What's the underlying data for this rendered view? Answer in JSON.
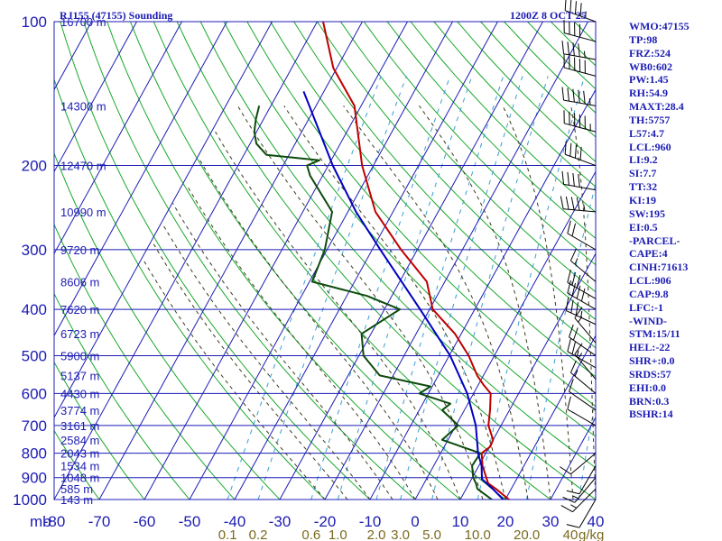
{
  "title": "RJ155 (47155) Sounding",
  "valid": "1200Z  8 OCT 25",
  "indices": [
    "WMO:47155",
    "TP:98",
    "FRZ:524",
    "WB0:602",
    "PW:1.45",
    "RH:54.9",
    "MAXT:28.4",
    "TH:5757",
    "L57:4.7",
    "LCL:960",
    "LI:9.2",
    "SI:7.7",
    "TT:32",
    "KI:19",
    "SW:195",
    "EI:0.5",
    "-PARCEL-",
    "CAPE:4",
    "CINH:71613",
    "LCL:906",
    "CAP:9.8",
    "LFC:-1",
    "-WIND-",
    "STM:15/11",
    "HEL:-22",
    "SHR+:0.0",
    "SRDS:57",
    "EHI:0.0",
    "BRN:0.3",
    "BSHR:14"
  ],
  "colors": {
    "isobar": "#1c1cb4",
    "isotherm": "#1c1cb4",
    "dry_adiabat": "#19a82b",
    "moist_adiabat": "#3c3c1e",
    "mixing_ratio": "#3a9fd0",
    "temperature": "#c00000",
    "dewpoint": "#0e4b0e",
    "parcel": "#0000c0",
    "label": "#1c1cb4",
    "mixing_label": "#7a6a1e"
  },
  "chart_data": {
    "type": "line",
    "diagram": "skew-T log-p",
    "y_axis": {
      "unit_label": "mb",
      "scale": "log",
      "range": [
        1000,
        100
      ],
      "ticks": [
        100,
        200,
        300,
        400,
        500,
        600,
        700,
        800,
        900,
        1000
      ]
    },
    "x_axis": {
      "unit": "C",
      "range": [
        -80,
        40
      ],
      "ticks": [
        "-80",
        "-70",
        "-60",
        "-50",
        "-40",
        "-30",
        "-20",
        "-10",
        "0",
        "10",
        "20",
        "30",
        "40"
      ],
      "mixing_ratio_unit": "g/kg",
      "mixing_ratio_ticks": [
        "0.1",
        "0.2",
        "0.6",
        "1.0",
        "2.0",
        "3.0",
        "5.0",
        "10.0",
        "20.0",
        "40"
      ]
    },
    "height_labels": [
      {
        "p": 100,
        "label": "16700 m"
      },
      {
        "p": 150,
        "label": "14300 m"
      },
      {
        "p": 200,
        "label": "12470 m"
      },
      {
        "p": 250,
        "label": "10990 m"
      },
      {
        "p": 300,
        "label": "9720 m"
      },
      {
        "p": 350,
        "label": "8606 m"
      },
      {
        "p": 400,
        "label": "7620 m"
      },
      {
        "p": 450,
        "label": "6723 m"
      },
      {
        "p": 500,
        "label": "5900 m"
      },
      {
        "p": 550,
        "label": "5137 m"
      },
      {
        "p": 600,
        "label": "4430 m"
      },
      {
        "p": 650,
        "label": "3774 m"
      },
      {
        "p": 700,
        "label": "3161 m"
      },
      {
        "p": 750,
        "label": "2584 m"
      },
      {
        "p": 800,
        "label": "2043 m"
      },
      {
        "p": 850,
        "label": "1534 m"
      },
      {
        "p": 900,
        "label": "1048 m"
      },
      {
        "p": 950,
        "label": "585 m"
      },
      {
        "p": 1000,
        "label": "143 m"
      }
    ],
    "series": [
      {
        "role": "temperature",
        "points": [
          [
            1010,
            22.0
          ],
          [
            1000,
            20.8
          ],
          [
            950,
            16.6
          ],
          [
            925,
            14.2
          ],
          [
            900,
            13.1
          ],
          [
            850,
            10.8
          ],
          [
            800,
            9.1
          ],
          [
            775,
            10.2
          ],
          [
            750,
            10.0
          ],
          [
            700,
            7.2
          ],
          [
            650,
            5.7
          ],
          [
            600,
            3.8
          ],
          [
            575,
            1.1
          ],
          [
            550,
            -1.4
          ],
          [
            500,
            -5.7
          ],
          [
            450,
            -11.4
          ],
          [
            400,
            -19.3
          ],
          [
            350,
            -24.0
          ],
          [
            300,
            -33.6
          ],
          [
            250,
            -43.9
          ],
          [
            200,
            -52.5
          ],
          [
            150,
            -61.5
          ],
          [
            125,
            -70.8
          ],
          [
            100,
            -78.7
          ]
        ]
      },
      {
        "role": "dewpoint",
        "points": [
          [
            1010,
            17.8
          ],
          [
            1000,
            17.0
          ],
          [
            950,
            12.5
          ],
          [
            925,
            11.5
          ],
          [
            900,
            10.2
          ],
          [
            850,
            8.5
          ],
          [
            800,
            8.8
          ],
          [
            750,
            -1.3
          ],
          [
            700,
            0.5
          ],
          [
            650,
            -4.9
          ],
          [
            630,
            -3.9
          ],
          [
            600,
            -12.0
          ],
          [
            580,
            -10.4
          ],
          [
            550,
            -23.0
          ],
          [
            500,
            -29.0
          ],
          [
            450,
            -32.1
          ],
          [
            400,
            -26.6
          ],
          [
            375,
            -35.5
          ],
          [
            350,
            -49.4
          ],
          [
            300,
            -50.5
          ],
          [
            250,
            -53.5
          ],
          [
            210,
            -62.8
          ],
          [
            200,
            -64.7
          ],
          [
            195,
            -62.6
          ],
          [
            190,
            -75.0
          ],
          [
            180,
            -78.6
          ],
          [
            170,
            -80.5
          ],
          [
            160,
            -81.7
          ],
          [
            150,
            -82.6
          ]
        ]
      },
      {
        "role": "parcel",
        "points": [
          [
            1000,
            19.5
          ],
          [
            950,
            15.9
          ],
          [
            906,
            12.3
          ],
          [
            850,
            10.6
          ],
          [
            800,
            8.3
          ],
          [
            700,
            4.4
          ],
          [
            600,
            -1.4
          ],
          [
            500,
            -9.8
          ],
          [
            400,
            -22.1
          ],
          [
            300,
            -38.2
          ],
          [
            250,
            -48.2
          ],
          [
            200,
            -59.0
          ],
          [
            150,
            -71.5
          ],
          [
            140,
            -74.5
          ]
        ]
      }
    ],
    "wind_barbs": [
      {
        "p": 100,
        "dir": 290,
        "spd": 45
      },
      {
        "p": 110,
        "dir": 285,
        "spd": 40
      },
      {
        "p": 120,
        "dir": 280,
        "spd": 45
      },
      {
        "p": 130,
        "dir": 285,
        "spd": 50
      },
      {
        "p": 150,
        "dir": 280,
        "spd": 55
      },
      {
        "p": 170,
        "dir": 285,
        "spd": 55
      },
      {
        "p": 200,
        "dir": 290,
        "spd": 40
      },
      {
        "p": 225,
        "dir": 280,
        "spd": 40
      },
      {
        "p": 250,
        "dir": 275,
        "spd": 45
      },
      {
        "p": 300,
        "dir": 300,
        "spd": 20
      },
      {
        "p": 350,
        "dir": 310,
        "spd": 15
      },
      {
        "p": 380,
        "dir": 300,
        "spd": 30
      },
      {
        "p": 400,
        "dir": 300,
        "spd": 40
      },
      {
        "p": 430,
        "dir": 295,
        "spd": 35
      },
      {
        "p": 470,
        "dir": 320,
        "spd": 15
      },
      {
        "p": 500,
        "dir": 305,
        "spd": 20
      },
      {
        "p": 530,
        "dir": 300,
        "spd": 25
      },
      {
        "p": 560,
        "dir": 320,
        "spd": 15
      },
      {
        "p": 600,
        "dir": 310,
        "spd": 15
      },
      {
        "p": 650,
        "dir": 305,
        "spd": 10
      },
      {
        "p": 700,
        "dir": 300,
        "spd": 10
      },
      {
        "p": 800,
        "dir": 230,
        "spd": 10
      },
      {
        "p": 850,
        "dir": 210,
        "spd": 10
      },
      {
        "p": 900,
        "dir": 220,
        "spd": 15
      },
      {
        "p": 950,
        "dir": 225,
        "spd": 15
      },
      {
        "p": 1000,
        "dir": 210,
        "spd": 10
      }
    ]
  }
}
